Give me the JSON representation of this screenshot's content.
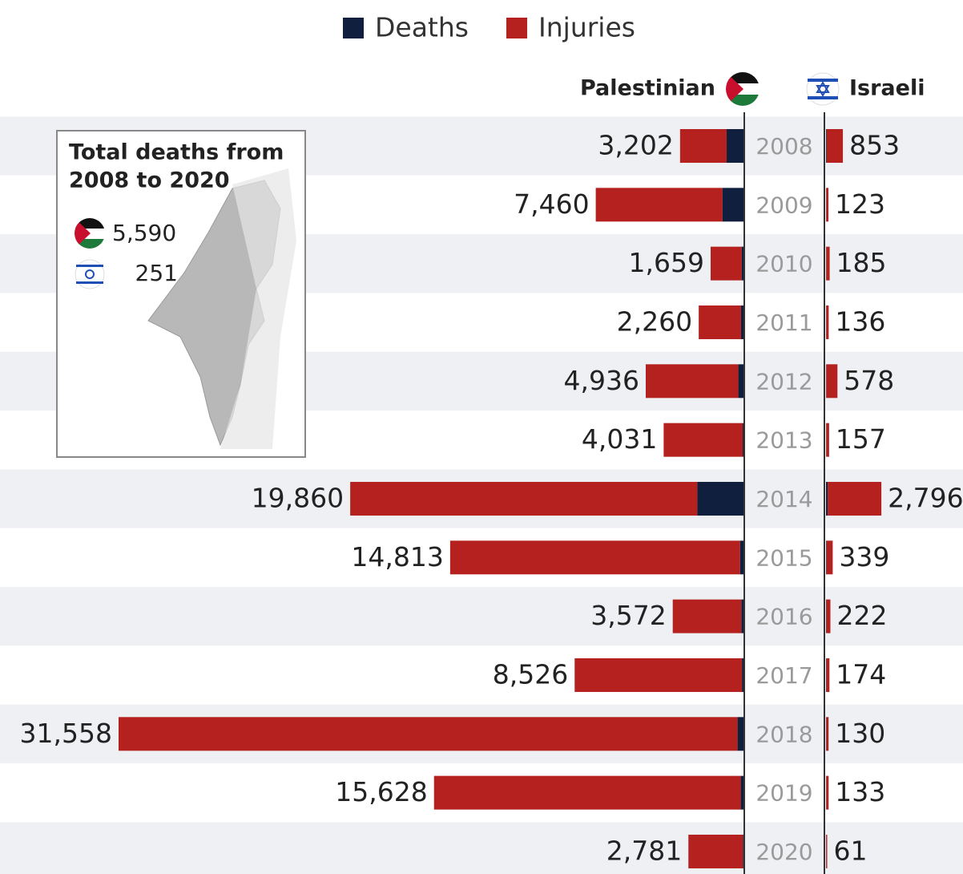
{
  "chart_data": {
    "type": "butterfly-bar",
    "categories": [
      "2008",
      "2009",
      "2010",
      "2011",
      "2012",
      "2013",
      "2014",
      "2015",
      "2016",
      "2017",
      "2018",
      "2019",
      "2020"
    ],
    "sides": [
      {
        "name": "Palestinian",
        "totals": [
          3202,
          7460,
          1659,
          2260,
          4936,
          4031,
          19860,
          14813,
          3572,
          8526,
          31558,
          15628,
          2781
        ],
        "total_labels": [
          "3,202",
          "7,460",
          "1,659",
          "2,260",
          "4,936",
          "4,031",
          "19,860",
          "14,813",
          "3,572",
          "8,526",
          "31,558",
          "15,628",
          "2,781"
        ],
        "series": [
          {
            "name": "Deaths",
            "color": "#0f1f3d",
            "values": [
              849,
              1066,
              95,
              124,
              260,
              39,
              2329,
              174,
              109,
              77,
              300,
              138,
              30
            ]
          },
          {
            "name": "Injuries",
            "color": "#b5211f",
            "values": [
              2353,
              6394,
              1564,
              2136,
              4676,
              3992,
              17531,
              14639,
              3463,
              8449,
              31258,
              15490,
              2751
            ]
          }
        ]
      },
      {
        "name": "Israeli",
        "totals": [
          853,
          123,
          185,
          136,
          578,
          157,
          2796,
          339,
          222,
          174,
          130,
          133,
          61
        ],
        "total_labels": [
          "853",
          "123",
          "185",
          "136",
          "578",
          "157",
          "2,796",
          "339",
          "222",
          "174",
          "130",
          "133",
          "61"
        ],
        "series": [
          {
            "name": "Deaths",
            "color": "#0f1f3d",
            "values": [
              35,
              9,
              9,
              11,
              7,
              6,
              85,
              28,
              17,
              17,
              14,
              10,
              3
            ]
          },
          {
            "name": "Injuries",
            "color": "#b5211f",
            "values": [
              818,
              114,
              176,
              125,
              571,
              151,
              2711,
              311,
              205,
              157,
              116,
              123,
              58
            ]
          }
        ]
      }
    ],
    "inset": {
      "title": [
        "Total deaths from",
        "2008 to 2020"
      ],
      "values": [
        5590,
        251
      ],
      "value_labels": [
        "5,590",
        "251"
      ]
    }
  }
}
